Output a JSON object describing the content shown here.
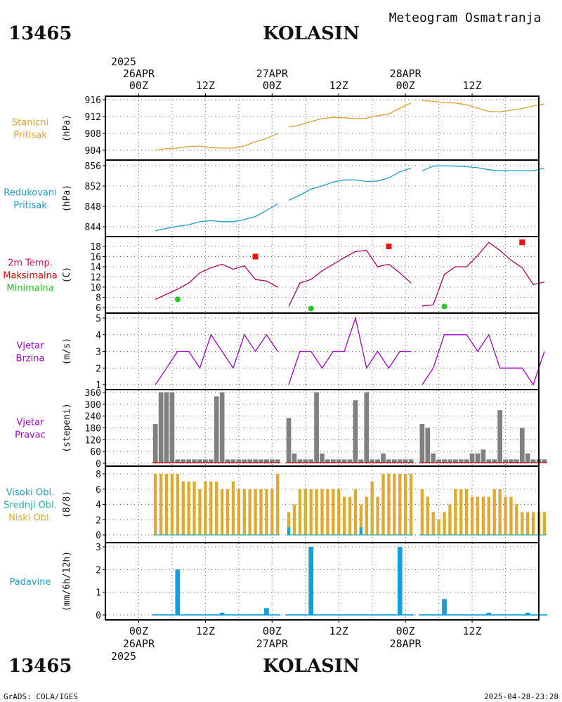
{
  "header": {
    "station_id": "13465",
    "station_name": "KOLASIN",
    "product": "Meteogram Osmatranja",
    "year": "2025"
  },
  "footer": {
    "credit": "GrADS: COLA/IGES",
    "timestamp": "2025-04-28-23:28"
  },
  "time_axis": {
    "hour_labels": [
      "00Z",
      "12Z",
      "00Z",
      "12Z",
      "00Z",
      "12Z"
    ],
    "date_labels": [
      "26APR",
      "27APR",
      "28APR"
    ],
    "range_hours": [
      -6,
      72
    ]
  },
  "colors": {
    "pressure": "#e0a030",
    "reduced_pressure": "#1e9ccf",
    "max_temp_label": "#e0003c",
    "max_temp_marker": "#ee1111",
    "min_temp": "#22cc22",
    "wind": "#a000c8",
    "wind_dir_bar": "#808080",
    "wind_dir_base": "#cc2222",
    "low_cloud": "#e0aa30",
    "mid_cloud": "#20b0b0",
    "high_cloud": "#20a0c0",
    "precip": "#10a0e0"
  },
  "panels": [
    {
      "id": "pressure",
      "labels": [
        "Stanicni",
        "Pritisak"
      ],
      "label_color": "#e0a030",
      "unit": "(hPa)",
      "ticks": [
        "904",
        "908",
        "912",
        "916"
      ]
    },
    {
      "id": "reduced",
      "labels": [
        "Redukovani",
        "Pritisak"
      ],
      "label_color": "#1e9ccf",
      "unit": "(hPa)",
      "ticks": [
        "844",
        "848",
        "852",
        "856"
      ]
    },
    {
      "id": "temp",
      "labels": [
        "2m Temp.",
        "Maksimalna",
        "Minimalna"
      ],
      "label_colors": [
        "#cc1060",
        "#e00000",
        "#22bb22"
      ],
      "unit": "(C)",
      "ticks": [
        "6",
        "8",
        "10",
        "12",
        "14",
        "16",
        "18"
      ]
    },
    {
      "id": "wind_speed",
      "labels": [
        "Vjetar",
        "Brzina"
      ],
      "label_color": "#a000c8",
      "unit": "(m/s)",
      "ticks": [
        "1",
        "2",
        "3",
        "4",
        "5"
      ]
    },
    {
      "id": "wind_dir",
      "labels": [
        "Vjetar",
        "Pravac"
      ],
      "label_color": "#a000c8",
      "unit": "(stepeni)",
      "ticks": [
        "0",
        "60",
        "120",
        "180",
        "240",
        "300",
        "360"
      ]
    },
    {
      "id": "clouds",
      "labels": [
        "Visoki Obl.",
        "Srednji Obl.",
        "Niski Obl."
      ],
      "label_colors": [
        "#20a0c0",
        "#20b0b0",
        "#e0aa30"
      ],
      "unit": "(8/8)",
      "ticks": [
        "0",
        "2",
        "4",
        "6",
        "8"
      ]
    },
    {
      "id": "precip",
      "labels": [
        "Padavine"
      ],
      "label_color": "#1e9ccf",
      "unit": "(mm/6h/12h)",
      "ticks": [
        "0",
        "1",
        "2",
        "3"
      ]
    }
  ],
  "chart_data": [
    {
      "type": "line",
      "id": "station_pressure",
      "x_unit": "hours since 2025-04-26 00Z",
      "ylim": [
        903,
        917
      ],
      "series": [
        {
          "x": [
            3,
            5,
            7,
            9,
            11,
            13,
            15,
            17,
            19,
            21,
            23,
            25
          ],
          "y": [
            904.0,
            904.4,
            904.5,
            904.9,
            905.0,
            904.6,
            904.5,
            904.5,
            905.0,
            906.0,
            906.8,
            908.0
          ]
        },
        {
          "x": [
            27,
            29,
            31,
            33,
            35,
            37,
            39,
            41,
            43,
            45,
            47,
            49
          ],
          "y": [
            909.5,
            910.0,
            910.8,
            911.5,
            911.8,
            911.7,
            911.5,
            911.6,
            912.2,
            912.6,
            914.0,
            915.2
          ]
        },
        {
          "x": [
            51,
            53,
            55,
            57,
            59,
            61,
            63,
            65,
            67,
            69,
            71,
            73
          ],
          "y": [
            915.8,
            915.6,
            915.3,
            915.2,
            914.8,
            914.0,
            913.2,
            913.1,
            913.5,
            913.9,
            914.5,
            915.0
          ]
        }
      ]
    },
    {
      "type": "line",
      "id": "reduced_pressure",
      "ylim": [
        842.5,
        856.5
      ],
      "series": [
        {
          "x": [
            3,
            5,
            7,
            9,
            11,
            13,
            15,
            17,
            19,
            21,
            23,
            25
          ],
          "y": [
            843.2,
            843.7,
            844.1,
            844.4,
            845.0,
            845.2,
            845.0,
            845.0,
            845.4,
            846.0,
            847.2,
            848.5
          ]
        },
        {
          "x": [
            27,
            29,
            31,
            33,
            35,
            37,
            39,
            41,
            43,
            45,
            47,
            49
          ],
          "y": [
            849.2,
            850.2,
            851.4,
            852.0,
            852.8,
            853.2,
            853.2,
            852.9,
            853.0,
            853.6,
            854.8,
            855.5
          ]
        },
        {
          "x": [
            51,
            53,
            55,
            57,
            59,
            61,
            63,
            65,
            67,
            69,
            71,
            73
          ],
          "y": [
            855.0,
            855.9,
            856.0,
            855.9,
            855.8,
            855.6,
            855.2,
            855.0,
            855.0,
            855.0,
            855.0,
            855.5
          ]
        }
      ]
    },
    {
      "type": "line",
      "id": "temperature",
      "ylim": [
        5,
        19.5
      ],
      "series": [
        {
          "name": "2m Temp.",
          "x": [
            3,
            5,
            7,
            9,
            11,
            13,
            15,
            17,
            19,
            21,
            23,
            25
          ],
          "y": [
            7.6,
            8.6,
            9.6,
            10.8,
            12.8,
            13.8,
            14.5,
            13.5,
            14.2,
            11.5,
            11.2,
            10.0
          ]
        },
        {
          "name": "2m Temp.",
          "x": [
            27,
            29,
            31,
            33,
            35,
            37,
            39,
            41,
            43,
            45,
            47,
            49
          ],
          "y": [
            6.2,
            10.8,
            11.5,
            13.2,
            14.5,
            15.8,
            17.0,
            17.2,
            14.0,
            14.5,
            12.8,
            10.8
          ]
        },
        {
          "name": "2m Temp.",
          "x": [
            51,
            53,
            55,
            57,
            59,
            61,
            63,
            65,
            67,
            69,
            71,
            73
          ],
          "y": [
            6.3,
            6.5,
            12.5,
            14.0,
            14.0,
            16.2,
            18.8,
            17.2,
            15.3,
            13.8,
            10.5,
            11.0
          ]
        }
      ],
      "max_points": [
        {
          "x": 21,
          "y": 16.0
        },
        {
          "x": 45,
          "y": 18.0
        },
        {
          "x": 69,
          "y": 18.8
        }
      ],
      "min_points": [
        {
          "x": 7,
          "y": 7.6
        },
        {
          "x": 31,
          "y": 5.8
        },
        {
          "x": 55,
          "y": 6.2
        }
      ]
    },
    {
      "type": "line",
      "id": "wind_speed",
      "ylim": [
        1,
        5
      ],
      "series": [
        {
          "x": [
            3,
            5,
            7,
            9,
            11,
            13,
            15,
            17,
            19,
            21,
            23,
            25
          ],
          "y": [
            1,
            2,
            3,
            3,
            2,
            4,
            3,
            2,
            4,
            3,
            4,
            3
          ]
        },
        {
          "x": [
            27,
            29,
            31,
            33,
            35,
            37,
            39,
            41,
            43,
            45,
            47,
            49
          ],
          "y": [
            1,
            3,
            3,
            2,
            3,
            3,
            5,
            2,
            3,
            2,
            3,
            3
          ]
        },
        {
          "x": [
            51,
            53,
            55,
            57,
            59,
            61,
            63,
            65,
            67,
            69,
            71,
            73
          ],
          "y": [
            1,
            2,
            4,
            4,
            4,
            3,
            4,
            2,
            2,
            2,
            1,
            3
          ]
        }
      ]
    },
    {
      "type": "bar",
      "id": "wind_direction",
      "ylim": [
        0,
        360
      ],
      "x": [
        3,
        4,
        5,
        6,
        7,
        8,
        9,
        10,
        11,
        12,
        13,
        14,
        15,
        16,
        17,
        18,
        19,
        20,
        21,
        22,
        23,
        24,
        25,
        27,
        28,
        29,
        30,
        31,
        32,
        33,
        34,
        35,
        36,
        37,
        38,
        39,
        40,
        41,
        42,
        43,
        44,
        45,
        46,
        47,
        48,
        49,
        51,
        52,
        53,
        54,
        55,
        56,
        57,
        58,
        59,
        60,
        61,
        62,
        63,
        64,
        65,
        66,
        67,
        68,
        69,
        70,
        71,
        72,
        73
      ],
      "values": [
        200,
        360,
        360,
        360,
        20,
        20,
        20,
        20,
        20,
        20,
        20,
        340,
        360,
        20,
        20,
        20,
        20,
        20,
        20,
        20,
        20,
        20,
        20,
        230,
        50,
        20,
        20,
        20,
        360,
        50,
        20,
        20,
        20,
        20,
        20,
        320,
        20,
        360,
        20,
        20,
        50,
        20,
        20,
        20,
        20,
        20,
        200,
        180,
        50,
        20,
        20,
        20,
        20,
        20,
        20,
        50,
        50,
        70,
        20,
        20,
        270,
        20,
        20,
        20,
        180,
        50,
        20,
        20,
        20
      ]
    },
    {
      "type": "bar",
      "id": "clouds",
      "ylim": [
        0,
        8
      ],
      "low_cloud": {
        "x": [
          3,
          4,
          5,
          6,
          7,
          8,
          9,
          10,
          11,
          12,
          13,
          14,
          15,
          16,
          17,
          18,
          19,
          20,
          21,
          22,
          23,
          24,
          25,
          27,
          28,
          29,
          30,
          31,
          32,
          33,
          34,
          35,
          36,
          37,
          38,
          39,
          40,
          41,
          42,
          43,
          44,
          45,
          46,
          47,
          48,
          49,
          51,
          52,
          53,
          54,
          55,
          56,
          57,
          58,
          59,
          60,
          61,
          62,
          63,
          64,
          65,
          66,
          67,
          68,
          69,
          70,
          71,
          72,
          73
        ],
        "values": [
          8,
          8,
          8,
          8,
          8,
          7,
          7,
          7,
          6,
          7,
          7,
          7,
          6,
          6,
          7,
          6,
          6,
          6,
          6,
          6,
          6,
          6,
          8,
          3,
          4,
          6,
          6,
          6,
          6,
          6,
          6,
          6,
          6,
          5,
          5,
          6,
          4,
          5,
          7,
          5,
          8,
          8,
          8,
          8,
          8,
          8,
          6,
          5,
          3,
          2,
          3,
          4,
          6,
          6,
          6,
          5,
          5,
          5,
          5,
          6,
          6,
          5,
          5,
          4,
          3,
          3,
          3,
          3,
          3
        ]
      },
      "mid_cloud": {
        "x": [
          27,
          40
        ],
        "values": [
          1,
          1
        ]
      },
      "high_cloud": {
        "x": [
          27,
          40
        ],
        "values": [
          0.6,
          0.6
        ]
      }
    },
    {
      "type": "bar",
      "id": "precipitation",
      "ylim": [
        0,
        3.1
      ],
      "x": [
        3,
        4,
        5,
        6,
        7,
        8,
        9,
        10,
        11,
        12,
        13,
        14,
        15,
        16,
        17,
        18,
        19,
        20,
        21,
        22,
        23,
        24,
        25,
        27,
        28,
        29,
        30,
        31,
        32,
        33,
        34,
        35,
        36,
        37,
        38,
        39,
        40,
        41,
        42,
        43,
        44,
        45,
        46,
        47,
        48,
        49,
        51,
        52,
        53,
        54,
        55,
        56,
        57,
        58,
        59,
        60,
        61,
        62,
        63,
        64,
        65,
        66,
        67,
        68,
        69,
        70,
        71,
        72,
        73
      ],
      "values": [
        0,
        0,
        0,
        0,
        2.0,
        0,
        0,
        0,
        0,
        0,
        0,
        0,
        0.1,
        0,
        0,
        0,
        0,
        0,
        0,
        0,
        0.3,
        0,
        0,
        0,
        0,
        0,
        0,
        3.0,
        0,
        0,
        0,
        0,
        0,
        0,
        0,
        0,
        0,
        0,
        0,
        0,
        0,
        0,
        0,
        3.0,
        0,
        0,
        0,
        0,
        0,
        0,
        0.7,
        0,
        0,
        0,
        0,
        0,
        0,
        0,
        0.1,
        0,
        0,
        0,
        0,
        0,
        0,
        0.1,
        0,
        0,
        0
      ]
    }
  ]
}
